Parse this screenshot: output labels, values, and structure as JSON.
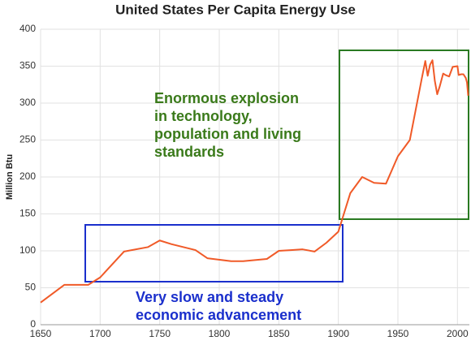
{
  "chart_data": {
    "type": "line",
    "title": "United States Per Capita Energy Use",
    "y_label": "Million Btu",
    "xlim": [
      1650,
      2010
    ],
    "xticks": [
      1650,
      1700,
      1750,
      1800,
      1850,
      1900,
      1950,
      2000
    ],
    "ylim": [
      0,
      400
    ],
    "yticks": [
      0,
      50,
      100,
      150,
      200,
      250,
      300,
      350,
      400
    ],
    "grid": true,
    "series": [
      {
        "color": "#f05a28",
        "x": [
          1650,
          1670,
          1690,
          1700,
          1720,
          1740,
          1750,
          1760,
          1780,
          1790,
          1810,
          1820,
          1840,
          1850,
          1860,
          1870,
          1880,
          1890,
          1900,
          1910,
          1920,
          1930,
          1940,
          1950,
          1960,
          1970,
          1973,
          1975,
          1977,
          1979,
          1981,
          1983,
          1985,
          1988,
          1990,
          1993,
          1996,
          2000,
          2001,
          2003,
          2005,
          2007,
          2008,
          2009
        ],
        "values": [
          30,
          54,
          54,
          64,
          99,
          105,
          114,
          109,
          101,
          90,
          86,
          86,
          89,
          100,
          101,
          102,
          99,
          111,
          126,
          178,
          200,
          192,
          191,
          228,
          250,
          333,
          357,
          337,
          352,
          358,
          330,
          312,
          322,
          340,
          338,
          336,
          349,
          350,
          338,
          339,
          339,
          334,
          328,
          310
        ]
      }
    ],
    "annotations": [
      {
        "lines": [
          "Enormous explosion",
          "in technology,",
          "population and living",
          "standards"
        ],
        "color": "#3a7a1a"
      },
      {
        "lines": [
          "Very slow and steady",
          "economic advancement"
        ],
        "color": "#1a2fcc"
      }
    ]
  }
}
